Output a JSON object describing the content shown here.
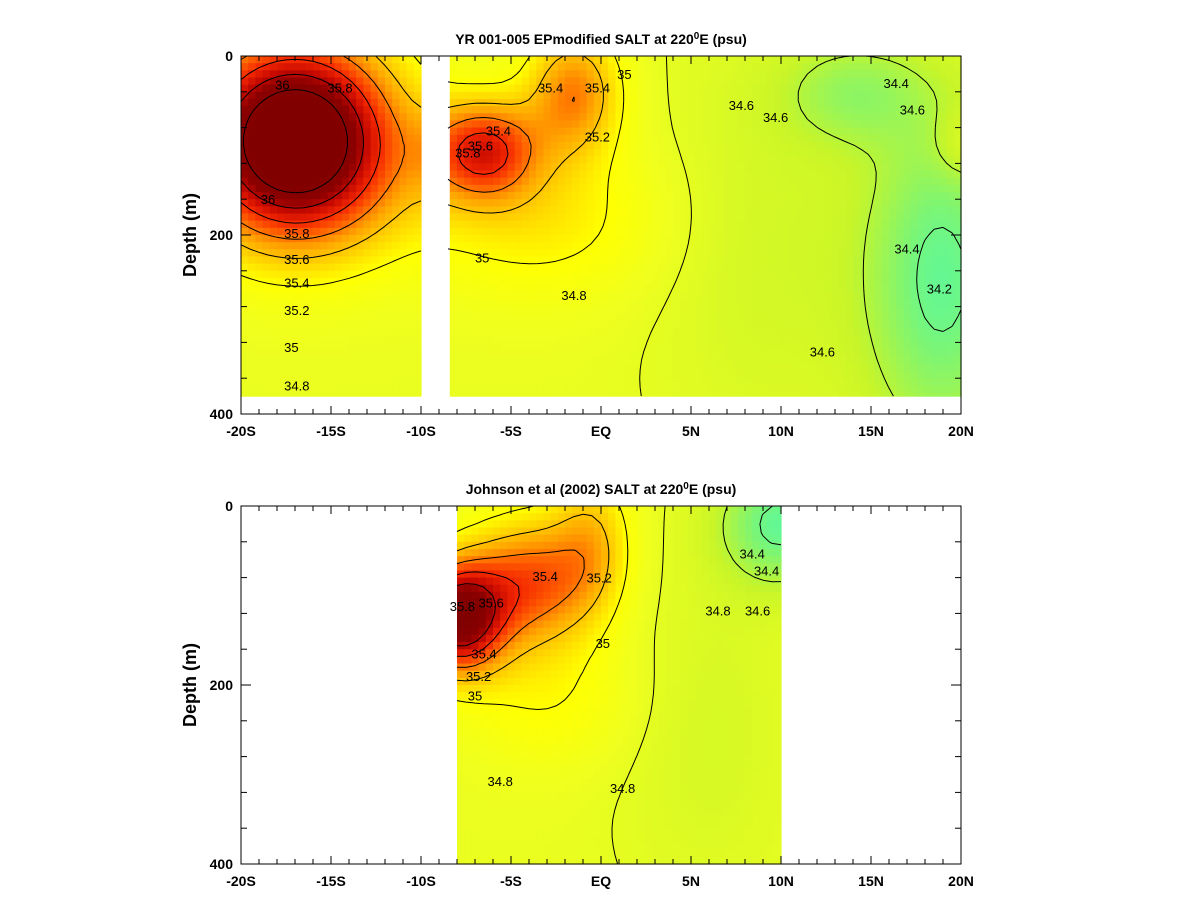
{
  "chart_data": [
    {
      "type": "heatmap",
      "title_prefix": "YR 001-005 EPmodified SALT at 220",
      "title_sup": "0",
      "title_suffix": "E (psu)",
      "ylabel": "Depth (m)",
      "xlim": [
        -20,
        20
      ],
      "ylim": [
        0,
        400
      ],
      "y_inverted": true,
      "x_tick_labels": [
        "-20S",
        "-15S",
        "-10S",
        "-5S",
        "EQ",
        "5N",
        "10N",
        "15N",
        "20N"
      ],
      "x_tick_values": [
        -20,
        -15,
        -10,
        -5,
        0,
        5,
        10,
        15,
        20
      ],
      "y_tick_labels": [
        "0",
        "200",
        "400"
      ],
      "y_tick_values": [
        0,
        200,
        400
      ],
      "data_x_range": [
        -20,
        20
      ],
      "data_depth_max": 380,
      "missing_x_range": [
        -10,
        -8.8
      ],
      "contour_levels": [
        34.2,
        34.4,
        34.6,
        34.8,
        35.0,
        35.2,
        35.4,
        35.6,
        35.8,
        36.0
      ],
      "contour_labels": [
        {
          "text": "36",
          "x": -17.7,
          "y": 32
        },
        {
          "text": "35.8",
          "x": -14.5,
          "y": 35
        },
        {
          "text": "36",
          "x": -18.5,
          "y": 160
        },
        {
          "text": "35.8",
          "x": -16.9,
          "y": 198
        },
        {
          "text": "35.6",
          "x": -16.9,
          "y": 227
        },
        {
          "text": "35.4",
          "x": -16.9,
          "y": 253
        },
        {
          "text": "35.2",
          "x": -16.9,
          "y": 284
        },
        {
          "text": "35",
          "x": -17.2,
          "y": 325
        },
        {
          "text": "34.8",
          "x": -16.9,
          "y": 368
        },
        {
          "text": "35.4",
          "x": -2.8,
          "y": 35
        },
        {
          "text": "35",
          "x": 1.3,
          "y": 20
        },
        {
          "text": "35.4",
          "x": -0.2,
          "y": 35
        },
        {
          "text": "35.2",
          "x": -0.2,
          "y": 90
        },
        {
          "text": "35.4",
          "x": -5.7,
          "y": 83
        },
        {
          "text": "35.6",
          "x": -6.7,
          "y": 100
        },
        {
          "text": "35.8",
          "x": -7.4,
          "y": 108
        },
        {
          "text": "35",
          "x": -6.6,
          "y": 225
        },
        {
          "text": "34.8",
          "x": -1.5,
          "y": 267
        },
        {
          "text": "34.6",
          "x": 7.8,
          "y": 55
        },
        {
          "text": "34.6",
          "x": 9.7,
          "y": 68
        },
        {
          "text": "34.4",
          "x": 16.4,
          "y": 30
        },
        {
          "text": "34.6",
          "x": 17.3,
          "y": 60
        },
        {
          "text": "34.4",
          "x": 17.0,
          "y": 215
        },
        {
          "text": "34.2",
          "x": 18.8,
          "y": 260
        },
        {
          "text": "34.6",
          "x": 12.3,
          "y": 330
        }
      ],
      "grid": false
    },
    {
      "type": "heatmap",
      "title_prefix": "Johnson et al (2002) SALT at 220",
      "title_sup": "0",
      "title_suffix": "E (psu)",
      "ylabel": "Depth (m)",
      "xlim": [
        -20,
        20
      ],
      "ylim": [
        0,
        400
      ],
      "y_inverted": true,
      "x_tick_labels": [
        "-20S",
        "-15S",
        "-10S",
        "-5S",
        "EQ",
        "5N",
        "10N",
        "15N",
        "20N"
      ],
      "x_tick_values": [
        -20,
        -15,
        -10,
        -5,
        0,
        5,
        10,
        15,
        20
      ],
      "y_tick_labels": [
        "0",
        "200",
        "400"
      ],
      "y_tick_values": [
        0,
        200,
        400
      ],
      "data_x_range": [
        -8,
        10
      ],
      "data_depth_max": 400,
      "contour_levels": [
        34.4,
        34.6,
        34.8,
        35.0,
        35.2,
        35.4,
        35.6,
        35.8
      ],
      "contour_labels": [
        {
          "text": "35.4",
          "x": -3.1,
          "y": 78
        },
        {
          "text": "35.2",
          "x": -0.1,
          "y": 80
        },
        {
          "text": "35.8",
          "x": -7.7,
          "y": 112
        },
        {
          "text": "35.6",
          "x": -6.1,
          "y": 108
        },
        {
          "text": "35",
          "x": 0.1,
          "y": 153
        },
        {
          "text": "35.4",
          "x": -6.5,
          "y": 165
        },
        {
          "text": "35.2",
          "x": -6.8,
          "y": 190
        },
        {
          "text": "35",
          "x": -7.0,
          "y": 212
        },
        {
          "text": "34.8",
          "x": -5.6,
          "y": 307
        },
        {
          "text": "34.8",
          "x": 1.2,
          "y": 315
        },
        {
          "text": "34.8",
          "x": 6.5,
          "y": 117
        },
        {
          "text": "34.6",
          "x": 8.7,
          "y": 117
        },
        {
          "text": "34.4",
          "x": 8.4,
          "y": 53
        },
        {
          "text": "34.4",
          "x": 9.2,
          "y": 72
        }
      ],
      "grid": false
    }
  ]
}
